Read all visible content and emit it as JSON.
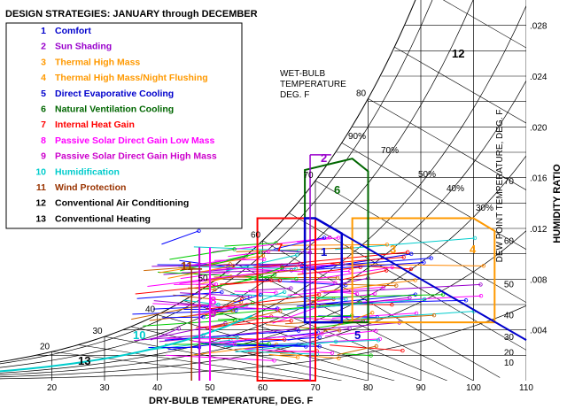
{
  "chart_data": {
    "type": "psychrometric",
    "title": "DESIGN STRATEGIES:  JANUARY through DECEMBER",
    "xlabel": "DRY-BULB TEMPERATURE, DEG. F",
    "ylabel": "HUMIDITY RATIO",
    "dewpoint_label": "DEW POINT TEMPERATURE, DEG. F",
    "wetbulb_label": [
      "WET-BULB",
      "TEMPERATURE",
      "DEG. F"
    ],
    "xlim": [
      10,
      110
    ],
    "ylim": [
      0,
      0.03
    ],
    "x_ticks": [
      "20",
      "30",
      "40",
      "50",
      "60",
      "70",
      "80",
      "90",
      "100",
      "110"
    ],
    "y_ticks": [
      ".004",
      ".008",
      ".012",
      ".016",
      ".020",
      ".024",
      ".028"
    ],
    "dewpoint_ticks": [
      "10",
      "20",
      "30",
      "40",
      "50",
      "60",
      "70"
    ],
    "wetbulb_ticks": [
      "20",
      "30",
      "40",
      "50",
      "60",
      "70",
      "80"
    ],
    "rh_labels": [
      "90%",
      "70%",
      "50%",
      "40%",
      "30%"
    ],
    "legend": [
      {
        "num": "1",
        "label": "Comfort",
        "color": "#0000cc"
      },
      {
        "num": "2",
        "label": "Sun Shading",
        "color": "#9900cc"
      },
      {
        "num": "3",
        "label": "Thermal High Mass",
        "color": "#ff9900"
      },
      {
        "num": "4",
        "label": "Thermal High Mass/Night Flushing",
        "color": "#ff9900"
      },
      {
        "num": "5",
        "label": "Direct Evaporative Cooling",
        "color": "#0000cc"
      },
      {
        "num": "6",
        "label": "Natural Ventilation Cooling",
        "color": "#006600"
      },
      {
        "num": "7",
        "label": "Internal Heat Gain",
        "color": "#ff0000"
      },
      {
        "num": "8",
        "label": "Passive Solar Direct Gain Low Mass",
        "color": "#ff00ff"
      },
      {
        "num": "9",
        "label": "Passive Solar Direct Gain High Mass",
        "color": "#cc00cc"
      },
      {
        "num": "10",
        "label": "Humidification",
        "color": "#00cccc"
      },
      {
        "num": "11",
        "label": "Wind Protection",
        "color": "#993300"
      },
      {
        "num": "12",
        "label": "Conventional Air Conditioning",
        "color": "#000000"
      },
      {
        "num": "13",
        "label": "Conventional Heating",
        "color": "#000000"
      }
    ],
    "zone_labels": [
      "1",
      "2",
      "3",
      "4",
      "5",
      "6",
      "7",
      "8",
      "9",
      "10",
      "11",
      "12",
      "13"
    ],
    "zones": {
      "comfort": [
        [
          68,
          0.0046
        ],
        [
          75,
          0.0046
        ],
        [
          75,
          0.0116
        ],
        [
          70,
          0.0128
        ],
        [
          68,
          0.0128
        ]
      ],
      "thermal_mass": [
        [
          77,
          0.0046
        ],
        [
          104,
          0.0046
        ],
        [
          104,
          0.0118
        ],
        [
          100,
          0.0128
        ],
        [
          77,
          0.0128
        ]
      ],
      "natural_vent": [
        [
          68,
          0.0046
        ],
        [
          80,
          0.0046
        ],
        [
          80,
          0.0165
        ],
        [
          77,
          0.0175
        ],
        [
          68,
          0.0166
        ]
      ],
      "internal_gain": [
        [
          59,
          0.0
        ],
        [
          70,
          0.0
        ],
        [
          70,
          0.0128
        ],
        [
          59,
          0.0128
        ]
      ],
      "passive_solar": [
        [
          48,
          0.0
        ],
        [
          50,
          0.0
        ]
      ],
      "sun_shading": [
        [
          69,
          0.0
        ],
        [
          69,
          0.0178
        ]
      ],
      "wind_protection": [
        [
          47,
          0.0
        ],
        [
          47,
          0.008
        ]
      ],
      "evap_line": [
        [
          70,
          0.0128
        ],
        [
          110,
          0.0032
        ]
      ]
    },
    "hourly_data_colors": [
      "#0000ff",
      "#ff0000",
      "#ff8800",
      "#ff00ff",
      "#00cc00",
      "#00cccc",
      "#9900cc",
      "#cc6600"
    ]
  }
}
